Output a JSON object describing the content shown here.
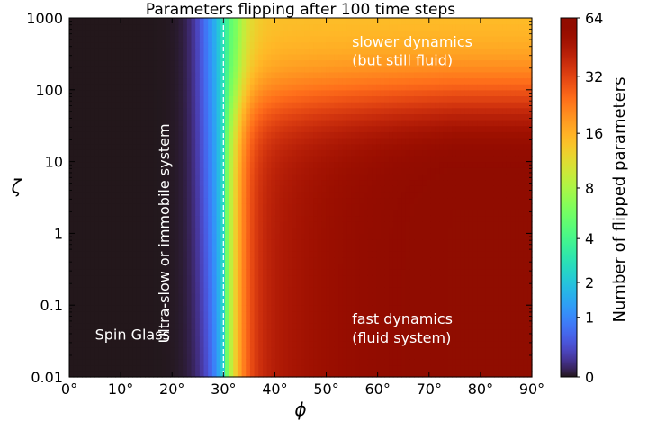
{
  "chart_data": {
    "type": "heatmap",
    "title": "Parameters flipping after 100 time steps",
    "xlabel": "ϕ",
    "ylabel": "ζ",
    "x_range": [
      0,
      90
    ],
    "x_unit": "degrees",
    "y_range": [
      0.01,
      1000
    ],
    "y_scale": "log",
    "x_ticks": [
      "0°",
      "10°",
      "20°",
      "30°",
      "40°",
      "50°",
      "60°",
      "70°",
      "80°",
      "90°"
    ],
    "x_tick_values": [
      0,
      10,
      20,
      30,
      40,
      50,
      60,
      70,
      80,
      90
    ],
    "y_ticks": [
      "0.01",
      "0.1",
      "1",
      "10",
      "100",
      "1000"
    ],
    "y_tick_values": [
      0.01,
      0.1,
      1,
      10,
      100,
      1000
    ],
    "colorbar": {
      "label": "Number of flipped parameters",
      "ticks": [
        "0",
        "1",
        "2",
        "4",
        "8",
        "16",
        "32",
        "64"
      ],
      "tick_values": [
        0,
        1,
        2,
        4,
        8,
        16,
        32,
        64
      ],
      "colormap": "turbo"
    },
    "reference_line": {
      "x": 30,
      "style": "dashed",
      "color": "#ffffff"
    },
    "regions": [
      {
        "name": "region-spin-glass",
        "text": "Spin Glass",
        "phi": 5,
        "zeta": 0.033
      },
      {
        "name": "region-immobile",
        "text": "Ultra-slow or immobile system",
        "phi": 20,
        "zeta": 1,
        "rotated": true
      },
      {
        "name": "region-slower-line1",
        "text": "slower dynamics",
        "phi": 55,
        "zeta": 400
      },
      {
        "name": "region-slower-line2",
        "text": "(but still fluid)",
        "phi": 55,
        "zeta": 220
      },
      {
        "name": "region-fast-line1",
        "text": "fast dynamics",
        "phi": 55,
        "zeta": 0.055
      },
      {
        "name": "region-fast-line2",
        "text": "(fluid system)",
        "phi": 55,
        "zeta": 0.03
      }
    ],
    "grid": false
  }
}
